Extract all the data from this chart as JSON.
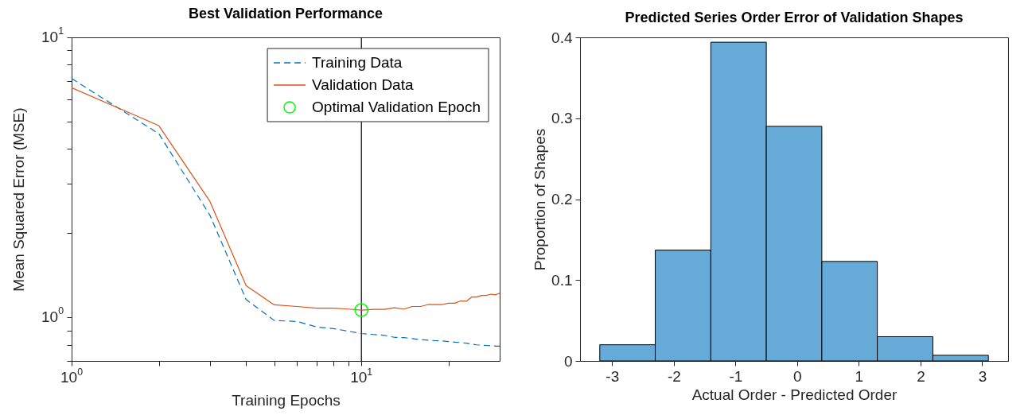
{
  "chart_data": [
    {
      "type": "line",
      "title": "Best Validation Performance",
      "xlabel": "Training Epochs",
      "ylabel": "Mean Squared Error (MSE)",
      "log": "xy",
      "legend": "top right",
      "xlim": [
        1,
        30
      ],
      "ylim": [
        0.7,
        10
      ],
      "xticks": [
        {
          "value": 1,
          "label": "10$^{0}$"
        },
        {
          "value": 2,
          "label": null
        },
        {
          "value": 3,
          "label": null
        },
        {
          "value": 4,
          "label": null
        },
        {
          "value": 5,
          "label": null
        },
        {
          "value": 6,
          "label": null
        },
        {
          "value": 7,
          "label": null
        },
        {
          "value": 8,
          "label": null
        },
        {
          "value": 9,
          "label": null
        },
        {
          "value": 10,
          "label": "10$^{1}$"
        },
        {
          "value": 20,
          "label": null
        }
      ],
      "yticks": [
        {
          "value": 0.7,
          "label": null
        },
        {
          "value": 0.8,
          "label": null
        },
        {
          "value": 0.9,
          "label": null
        },
        {
          "value": 1,
          "label": "10$^{0}$"
        },
        {
          "value": 2,
          "label": null
        },
        {
          "value": 3,
          "label": null
        },
        {
          "value": 4,
          "label": null
        },
        {
          "value": 5,
          "label": null
        },
        {
          "value": 6,
          "label": null
        },
        {
          "value": 7,
          "label": null
        },
        {
          "value": 8,
          "label": null
        },
        {
          "value": 9,
          "label": null
        },
        {
          "value": 10,
          "label": "10$^{1}$"
        }
      ],
      "x": [
        1,
        2,
        3,
        4,
        5,
        6,
        7,
        8,
        9,
        10,
        11,
        12,
        13,
        14,
        15,
        16,
        17,
        18,
        19,
        20,
        21,
        22,
        23,
        24,
        25,
        26,
        27,
        28,
        29,
        30
      ],
      "series": [
        {
          "name": "Training Data",
          "color": "#0072bd",
          "line_style": "dashed",
          "values": [
            7.13,
            4.53,
            2.32,
            1.16,
            0.976,
            0.968,
            0.926,
            0.913,
            0.894,
            0.877,
            0.87,
            0.864,
            0.85,
            0.848,
            0.841,
            0.834,
            0.83,
            0.827,
            0.825,
            0.821,
            0.817,
            0.814,
            0.81,
            0.804,
            0.799,
            0.797,
            0.795,
            0.793,
            0.791,
            0.791
          ]
        },
        {
          "name": "Validation Data",
          "color": "#d95319",
          "values": [
            6.61,
            4.84,
            2.6,
            1.3,
            1.11,
            1.095,
            1.08,
            1.08,
            1.072,
            1.063,
            1.069,
            1.069,
            1.083,
            1.072,
            1.095,
            1.095,
            1.113,
            1.113,
            1.113,
            1.125,
            1.125,
            1.146,
            1.143,
            1.183,
            1.183,
            1.199,
            1.199,
            1.212,
            1.205,
            1.222
          ]
        },
        {
          "name": "Optimal Validation Epoch",
          "type": "scatter",
          "marker": "circle",
          "color": "#00ff00",
          "x": [
            10
          ],
          "values": [
            1.063
          ]
        }
      ],
      "ref_lines": [
        {
          "axis": "x",
          "value": 10,
          "color": "#000000"
        }
      ]
    },
    {
      "type": "histogram",
      "title": "Predicted Series Order Error of Validation Shapes",
      "xlabel": "Actual Order - Predicted Order",
      "ylabel": "Proportion of Shapes",
      "color": "#66aad7",
      "bins": [
        -3.2,
        -2.3,
        -1.4,
        -0.5,
        0.4,
        1.3,
        2.2,
        3.1
      ],
      "values": [
        0.02,
        0.137,
        0.394,
        0.29,
        0.123,
        0.03,
        0.007
      ],
      "xlim": [
        -3.52,
        3.42
      ],
      "ylim": [
        0,
        0.4
      ],
      "xticks": [
        -3,
        -2,
        -1,
        0,
        1,
        2,
        3
      ],
      "yticks": [
        0,
        0.1,
        0.2,
        0.3,
        0.4
      ]
    }
  ]
}
